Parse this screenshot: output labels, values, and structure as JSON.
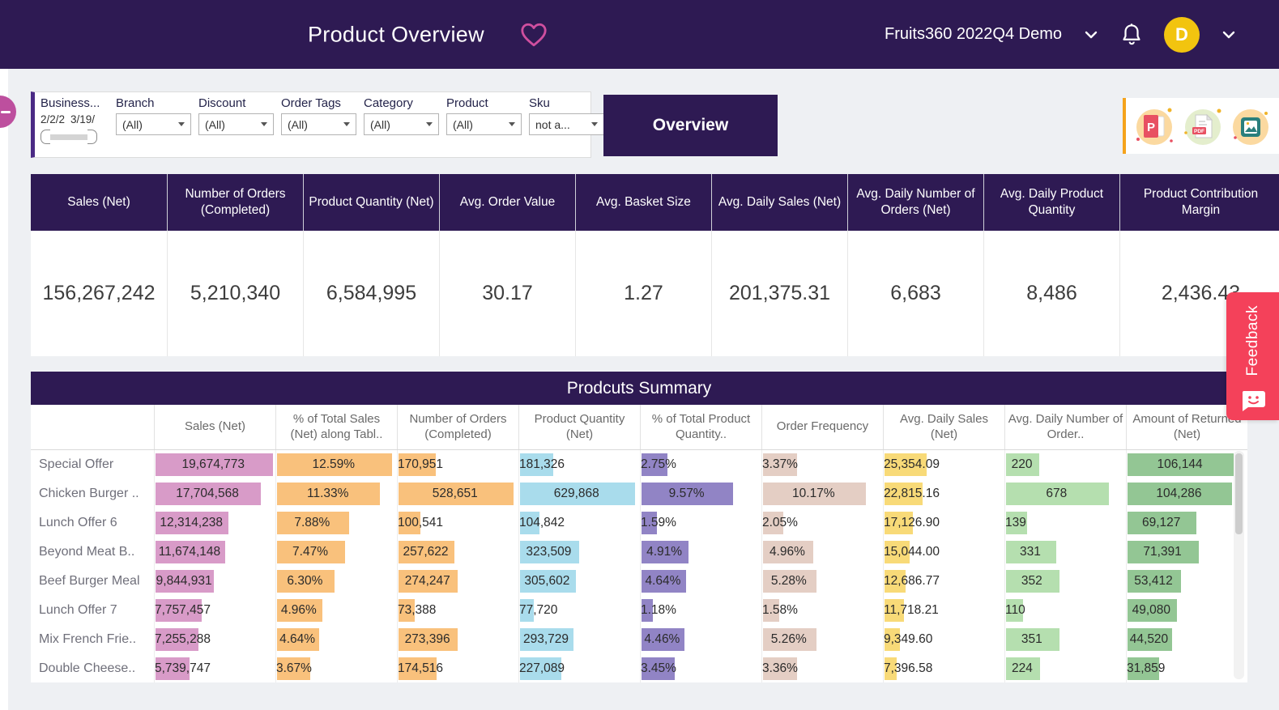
{
  "header": {
    "title": "Product Overview",
    "workbook": "Fruits360 2022Q4 Demo",
    "avatar_initial": "D"
  },
  "filters": {
    "business_date": {
      "label": "Business...",
      "start": "2/2/2",
      "end": "3/19/"
    },
    "dropdowns": [
      {
        "label": "Branch",
        "value": "(All)"
      },
      {
        "label": "Discount",
        "value": "(All)"
      },
      {
        "label": "Order Tags",
        "value": "(All)"
      },
      {
        "label": "Category",
        "value": "(All)"
      },
      {
        "label": "Product",
        "value": "(All)"
      },
      {
        "label": "Sku",
        "value": "not a..."
      }
    ]
  },
  "tab": {
    "label": "Overview"
  },
  "export": {
    "icons": [
      "powerpoint-export-icon",
      "pdf-export-icon",
      "image-export-icon"
    ]
  },
  "kpis": [
    {
      "label": "Sales (Net)",
      "value": "156,267,242"
    },
    {
      "label": "Number of Orders (Completed)",
      "value": "5,210,340"
    },
    {
      "label": "Product Quantity (Net)",
      "value": "6,584,995"
    },
    {
      "label": "Avg. Order Value",
      "value": "30.17"
    },
    {
      "label": "Avg. Basket Size",
      "value": "1.27"
    },
    {
      "label": "Avg. Daily Sales (Net)",
      "value": "201,375.31"
    },
    {
      "label": "Avg. Daily Number of Orders (Net)",
      "value": "6,683"
    },
    {
      "label": "Avg. Daily Product Quantity",
      "value": "8,486"
    },
    {
      "label": "Product Contribution Margin",
      "value": "2,436.43"
    }
  ],
  "summary": {
    "title": "Prodcuts Summary",
    "columns": [
      "",
      "Sales (Net)",
      "% of Total Sales (Net) along Tabl..",
      "Number of Orders (Completed)",
      "Product Quantity (Net)",
      "% of Total Product Quantity..",
      "Order Frequency",
      "Avg. Daily Sales (Net)",
      "Avg. Daily Number of Order..",
      "Amount of Returned (Net)"
    ],
    "rows": [
      {
        "name": "Special Offer",
        "values": [
          "19,674,773",
          "12.59%",
          "170,951",
          "181,326",
          "2.75%",
          "3.37%",
          "25,354.09",
          "220",
          "106,144"
        ]
      },
      {
        "name": "Chicken Burger ..",
        "values": [
          "17,704,568",
          "11.33%",
          "528,651",
          "629,868",
          "9.57%",
          "10.17%",
          "22,815.16",
          "678",
          "104,286"
        ]
      },
      {
        "name": "Lunch Offer 6",
        "values": [
          "12,314,238",
          "7.88%",
          "100,541",
          "104,842",
          "1.59%",
          "2.05%",
          "17,126.90",
          "139",
          "69,127"
        ]
      },
      {
        "name": "Beyond Meat B..",
        "values": [
          "11,674,148",
          "7.47%",
          "257,622",
          "323,509",
          "4.91%",
          "4.96%",
          "15,044.00",
          "331",
          "71,391"
        ]
      },
      {
        "name": "Beef Burger Meal",
        "values": [
          "9,844,931",
          "6.30%",
          "274,247",
          "305,602",
          "4.64%",
          "5.28%",
          "12,686.77",
          "352",
          "53,412"
        ]
      },
      {
        "name": "Lunch Offer 7",
        "values": [
          "7,757,457",
          "4.96%",
          "73,388",
          "77,720",
          "1.18%",
          "1.58%",
          "11,718.21",
          "110",
          "49,080"
        ]
      },
      {
        "name": "Mix French Frie..",
        "values": [
          "7,255,288",
          "4.64%",
          "273,396",
          "293,729",
          "4.46%",
          "5.26%",
          "9,349.60",
          "351",
          "44,520"
        ]
      },
      {
        "name": "Double Cheese..",
        "values": [
          "5,739,747",
          "3.67%",
          "174,516",
          "227,089",
          "3.45%",
          "3.36%",
          "7,396.58",
          "224",
          "31,859"
        ]
      }
    ]
  },
  "feedback": {
    "label": "Feedback"
  },
  "colors": {
    "header_purple": "#2e1a53",
    "accent_pink": "#bd4f9e",
    "feedback_red": "#f4415a",
    "avatar_yellow": "#f2c40f",
    "export_border_orange": "#f5a31c",
    "bar_colors": [
      "#d89bc8",
      "#f9c17c",
      "#f9c17c",
      "#a9dcec",
      "#9184c5",
      "#e4cec4",
      "#f8da78",
      "#b5dfaf",
      "#93c694"
    ]
  }
}
